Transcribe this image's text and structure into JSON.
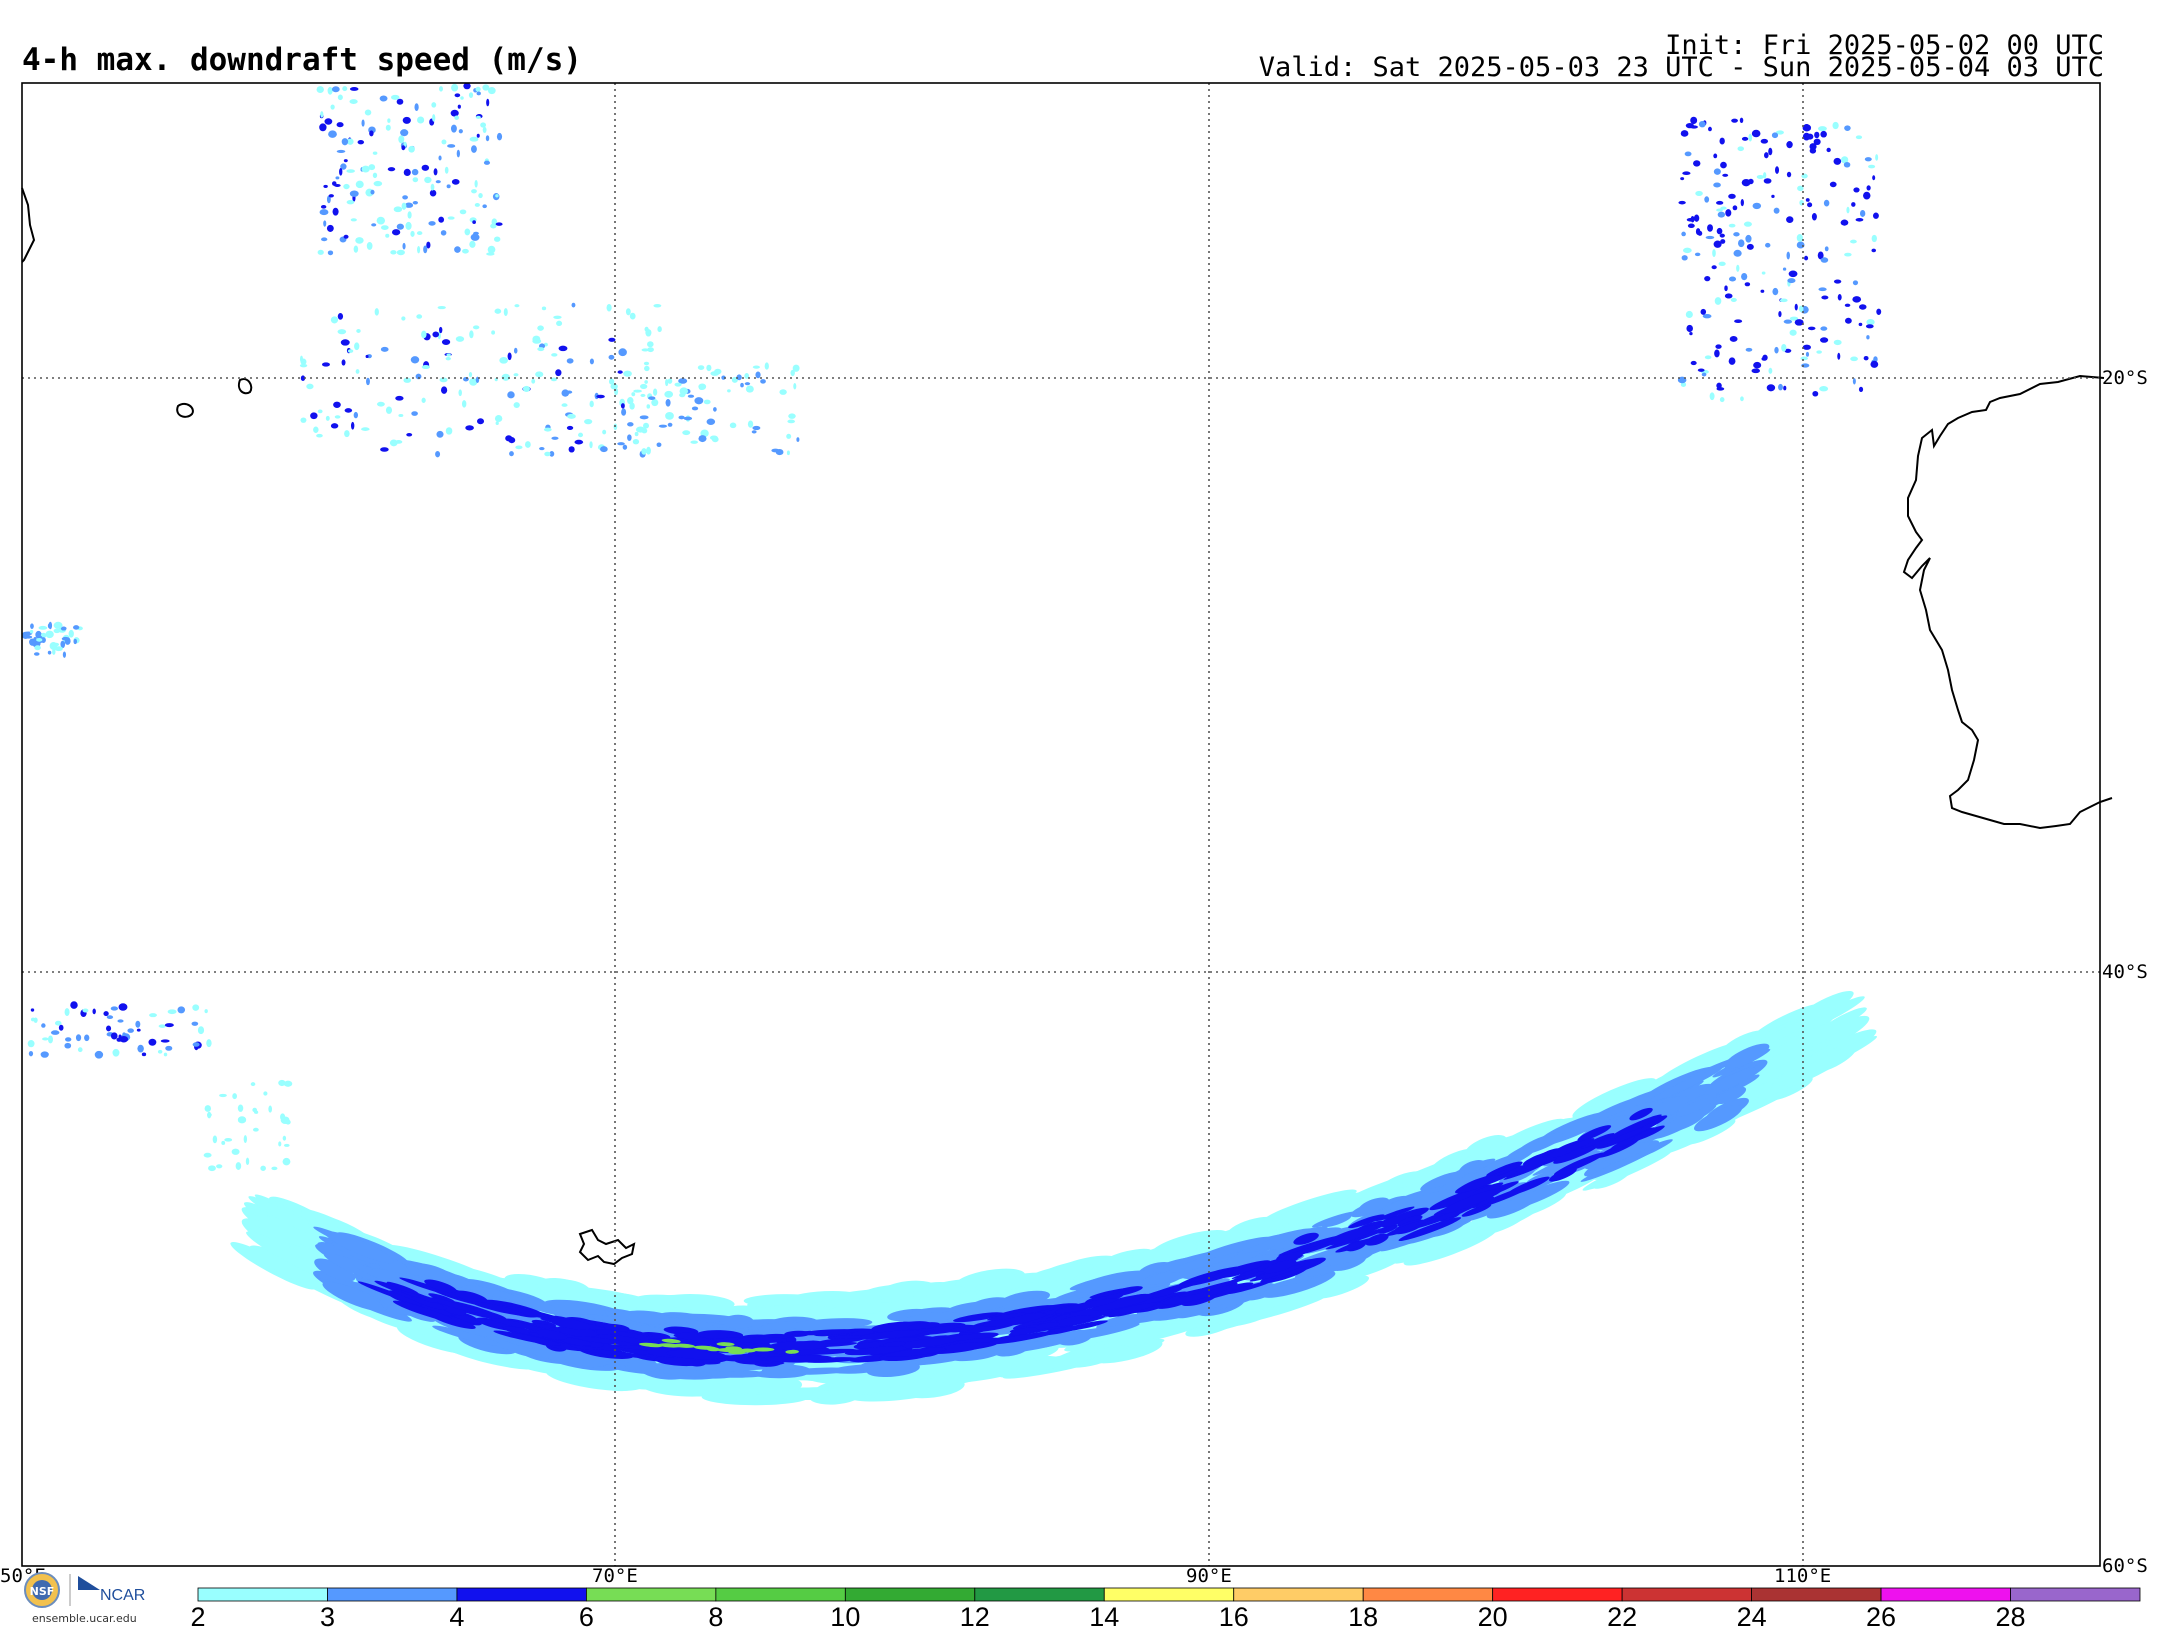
{
  "title": "4-h max. downdraft speed (m/s)",
  "init_text": "Init: Fri 2025-05-02 00 UTC",
  "valid_text": "Valid: Sat 2025-05-03 23 UTC - Sun 2025-05-04 03 UTC",
  "map": {
    "projection": "cylindrical equidistant",
    "lon_range": [
      50,
      120
    ],
    "lat_range": [
      -60,
      -10
    ],
    "lon_gridlines": [
      70,
      90,
      110
    ],
    "lat_gridlines": [
      -20,
      -40
    ],
    "lon_labels": [
      "50°E",
      "70°E",
      "90°E",
      "110°E"
    ],
    "lat_labels": [
      "20°S",
      "40°S",
      "60°S"
    ]
  },
  "colorbar": {
    "label_values": [
      "2",
      "3",
      "4",
      "6",
      "8",
      "10",
      "12",
      "14",
      "16",
      "18",
      "20",
      "22",
      "24",
      "26",
      "28"
    ],
    "colors": [
      "#99ffff",
      "#5599ff",
      "#1111ee",
      "#77dd55",
      "#55cc44",
      "#33aa33",
      "#229944",
      "#ffff66",
      "#ffcc66",
      "#ff8844",
      "#ff2222",
      "#cc3333",
      "#aa3333",
      "#ee11ee",
      "#9966cc"
    ]
  },
  "logo": {
    "org": "NCAR",
    "site": "ensemble.ucar.edu"
  }
}
